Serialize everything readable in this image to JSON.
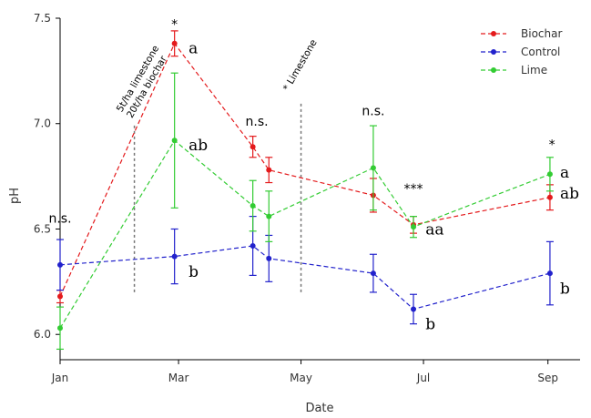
{
  "chart_data": {
    "type": "line",
    "xlabel": "Date",
    "ylabel": "pH",
    "ylim": [
      5.88,
      7.5
    ],
    "xlim": [
      "2015-01-01",
      "2015-09-17"
    ],
    "x_ticks": [
      {
        "date": "2015-01-01",
        "label": "Jan"
      },
      {
        "date": "2015-03-01",
        "label": "Mar"
      },
      {
        "date": "2015-05-01",
        "label": "May"
      },
      {
        "date": "2015-07-01",
        "label": "Jul"
      },
      {
        "date": "2015-09-01",
        "label": "Sep"
      }
    ],
    "y_ticks": [
      {
        "value": 6.0,
        "label": "6.0"
      },
      {
        "value": 6.5,
        "label": "6.5"
      },
      {
        "value": 7.0,
        "label": "7.0"
      },
      {
        "value": 7.5,
        "label": "7.5"
      }
    ],
    "grid": false,
    "legend_position": "top-right",
    "series": [
      {
        "name": "Biochar",
        "color": "#e41a1c",
        "line_style": "dashed",
        "points": [
          {
            "date": "2015-01-01",
            "y": 6.18,
            "err": 0.03
          },
          {
            "date": "2015-02-27",
            "y": 7.38,
            "err": 0.06
          },
          {
            "date": "2015-04-07",
            "y": 6.89,
            "err": 0.05
          },
          {
            "date": "2015-04-15",
            "y": 6.78,
            "err": 0.06
          },
          {
            "date": "2015-06-06",
            "y": 6.66,
            "err": 0.08
          },
          {
            "date": "2015-06-26",
            "y": 6.52,
            "err": 0.04
          },
          {
            "date": "2015-09-02",
            "y": 6.65,
            "err": 0.06
          }
        ]
      },
      {
        "name": "Control",
        "color": "#2222cc",
        "line_style": "dashed",
        "points": [
          {
            "date": "2015-01-01",
            "y": 6.33,
            "err": 0.12
          },
          {
            "date": "2015-02-27",
            "y": 6.37,
            "err": 0.13
          },
          {
            "date": "2015-04-07",
            "y": 6.42,
            "err": 0.14
          },
          {
            "date": "2015-04-15",
            "y": 6.36,
            "err": 0.11
          },
          {
            "date": "2015-06-06",
            "y": 6.29,
            "err": 0.09
          },
          {
            "date": "2015-06-26",
            "y": 6.12,
            "err": 0.07
          },
          {
            "date": "2015-09-02",
            "y": 6.29,
            "err": 0.15
          }
        ]
      },
      {
        "name": "Lime",
        "color": "#33cc33",
        "line_style": "dashed",
        "points": [
          {
            "date": "2015-01-01",
            "y": 6.03,
            "err": 0.1
          },
          {
            "date": "2015-02-27",
            "y": 6.92,
            "err": 0.32
          },
          {
            "date": "2015-04-07",
            "y": 6.61,
            "err": 0.12
          },
          {
            "date": "2015-04-15",
            "y": 6.56,
            "err": 0.12
          },
          {
            "date": "2015-06-06",
            "y": 6.79,
            "err": 0.2
          },
          {
            "date": "2015-06-26",
            "y": 6.51,
            "err": 0.05
          },
          {
            "date": "2015-09-02",
            "y": 6.76,
            "err": 0.08
          }
        ]
      }
    ],
    "event_lines": [
      {
        "date": "2015-02-07",
        "y_range": [
          6.2,
          7.0
        ],
        "labels": [
          "5t/ha limestone",
          "20t/ha biochar"
        ]
      },
      {
        "date": "2015-05-01",
        "y_range": [
          6.2,
          7.1
        ],
        "labels": [
          "* Limestone"
        ]
      }
    ],
    "annotations": [
      {
        "text": "n.s.",
        "date": "2015-01-01",
        "y": 6.53,
        "kind": "sig"
      },
      {
        "text": "*",
        "date": "2015-02-27",
        "y": 7.45,
        "kind": "sig"
      },
      {
        "text": "a",
        "date": "2015-03-06",
        "y": 7.36,
        "kind": "letter"
      },
      {
        "text": "ab",
        "date": "2015-03-06",
        "y": 6.9,
        "kind": "letter"
      },
      {
        "text": "b",
        "date": "2015-03-06",
        "y": 6.3,
        "kind": "letter"
      },
      {
        "text": "n.s.",
        "date": "2015-04-09",
        "y": 6.99,
        "kind": "sig"
      },
      {
        "text": "n.s.",
        "date": "2015-06-06",
        "y": 7.04,
        "kind": "sig"
      },
      {
        "text": "***",
        "date": "2015-06-26",
        "y": 6.67,
        "kind": "sig"
      },
      {
        "text": "aa",
        "date": "2015-07-02",
        "y": 6.5,
        "kind": "letter"
      },
      {
        "text": "b",
        "date": "2015-07-02",
        "y": 6.05,
        "kind": "letter"
      },
      {
        "text": "*",
        "date": "2015-09-03",
        "y": 6.88,
        "kind": "sig"
      },
      {
        "text": "a",
        "date": "2015-09-07",
        "y": 6.77,
        "kind": "letter"
      },
      {
        "text": "ab",
        "date": "2015-09-07",
        "y": 6.67,
        "kind": "letter"
      },
      {
        "text": "b",
        "date": "2015-09-07",
        "y": 6.22,
        "kind": "letter"
      }
    ]
  }
}
